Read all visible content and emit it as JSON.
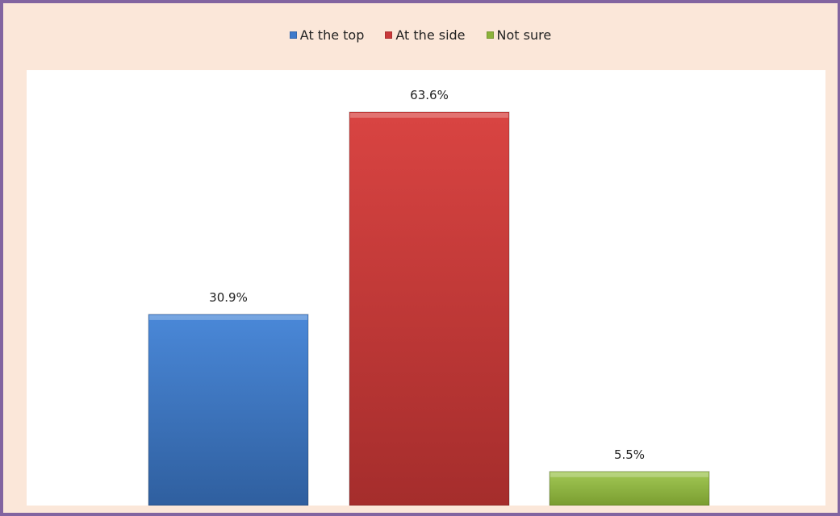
{
  "chart_data": {
    "type": "bar",
    "categories": [
      "At the top",
      "At the side",
      "Not sure"
    ],
    "values": [
      30.9,
      63.6,
      5.5
    ],
    "value_labels": [
      "30.9%",
      "63.6%",
      "5.5%"
    ],
    "colors": [
      "#3f7acb",
      "#c9393a",
      "#8bb23a"
    ],
    "legend_position": "top",
    "ylim": [
      0,
      70
    ],
    "grid": false,
    "title": "",
    "xlabel": "",
    "ylabel": ""
  }
}
